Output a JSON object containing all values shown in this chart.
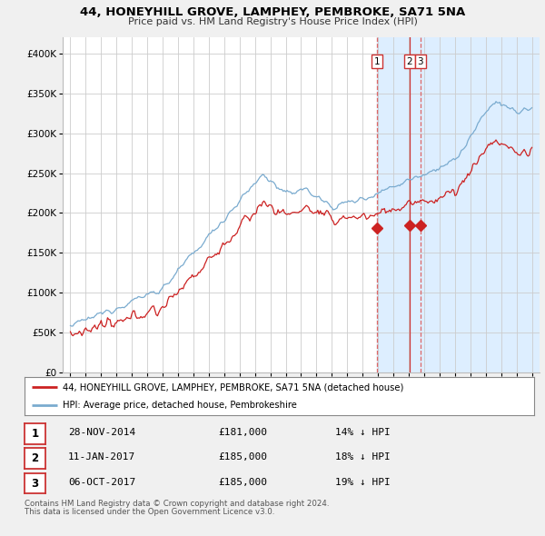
{
  "title1": "44, HONEYHILL GROVE, LAMPHEY, PEMBROKE, SA71 5NA",
  "title2": "Price paid vs. HM Land Registry's House Price Index (HPI)",
  "legend_label_red": "44, HONEYHILL GROVE, LAMPHEY, PEMBROKE, SA71 5NA (detached house)",
  "legend_label_blue": "HPI: Average price, detached house, Pembrokeshire",
  "transactions": [
    {
      "num": 1,
      "date": "28-NOV-2014",
      "price": 181000,
      "pct": "14%",
      "dir": "↓"
    },
    {
      "num": 2,
      "date": "11-JAN-2017",
      "price": 185000,
      "pct": "18%",
      "dir": "↓"
    },
    {
      "num": 3,
      "date": "06-OCT-2017",
      "price": 185000,
      "pct": "19%",
      "dir": "↓"
    }
  ],
  "footnote1": "Contains HM Land Registry data © Crown copyright and database right 2024.",
  "footnote2": "This data is licensed under the Open Government Licence v3.0.",
  "vline_dates": [
    2014.917,
    2017.042,
    2017.75
  ],
  "vline_color": "#cc3333",
  "vline_dash1_color": "#dd6666",
  "marker_prices": [
    181000,
    185000,
    185000
  ],
  "marker_dates": [
    2014.917,
    2017.042,
    2017.75
  ],
  "ylim_max": 420000,
  "xlim_start": 1994.5,
  "xlim_end": 2025.5,
  "background_color": "#f0f0f0",
  "plot_bg_color": "#ffffff",
  "grid_color": "#cccccc",
  "red_color": "#cc2222",
  "blue_color": "#7aabcf",
  "shade_color": "#ddeeff"
}
